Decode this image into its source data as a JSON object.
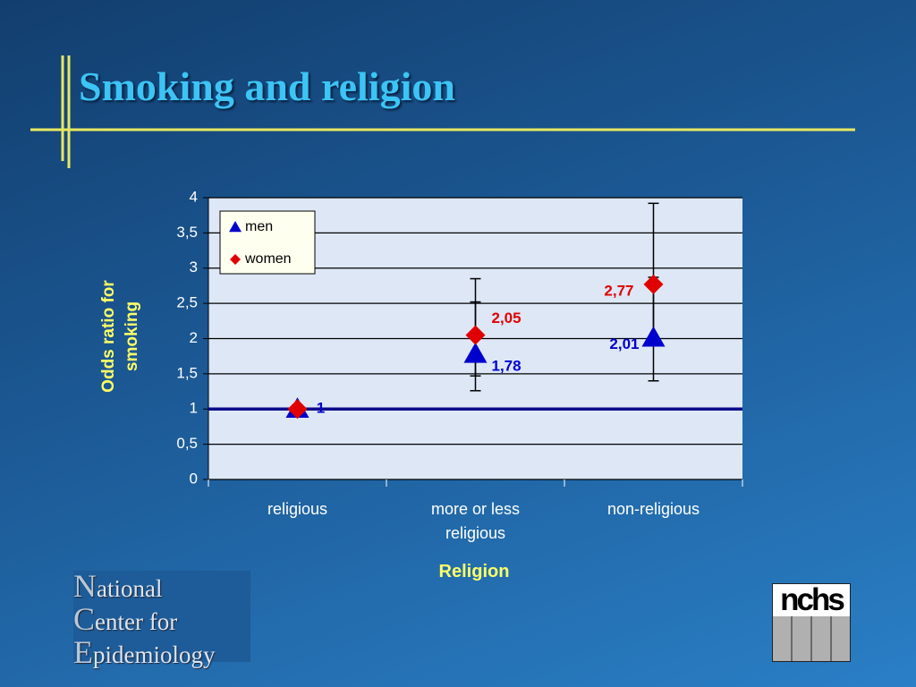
{
  "chart_data": {
    "type": "scatter",
    "title": "Smoking and religion",
    "x_label": "Religion",
    "y_label": "Odds ratio for smoking",
    "categories": [
      "religious",
      "more or less religious",
      "non-religious"
    ],
    "series": [
      {
        "name": "men",
        "color": "#0000cc",
        "marker": "triangle",
        "values": [
          1,
          1.78,
          2.01
        ],
        "value_labels": [
          "1",
          "1,78",
          "2,01"
        ],
        "ci_low": [
          null,
          1.26,
          1.4
        ],
        "ci_high": [
          null,
          2.52,
          2.87
        ]
      },
      {
        "name": "women",
        "color": "#e00000",
        "marker": "diamond",
        "values": [
          1,
          2.05,
          2.77
        ],
        "value_labels": [
          null,
          "2,05",
          "2,77"
        ],
        "ci_low": [
          null,
          1.47,
          1.96
        ],
        "ci_high": [
          null,
          2.85,
          3.92
        ]
      }
    ],
    "reference_line": 1,
    "ylim": [
      0,
      4
    ],
    "yticks": [
      0,
      {
        "value": 0.5,
        "label": "0,5"
      },
      1,
      {
        "value": 1.5,
        "label": "1,5"
      },
      2,
      {
        "value": 2.5,
        "label": "2,5"
      },
      3,
      {
        "value": 3.5,
        "label": "3,5"
      },
      4
    ],
    "grid": true,
    "legend": "upper-left"
  },
  "slide": {
    "logo_lines": [
      "National",
      "Center for",
      "Epidemiology"
    ],
    "logo_mark": "nchs"
  }
}
